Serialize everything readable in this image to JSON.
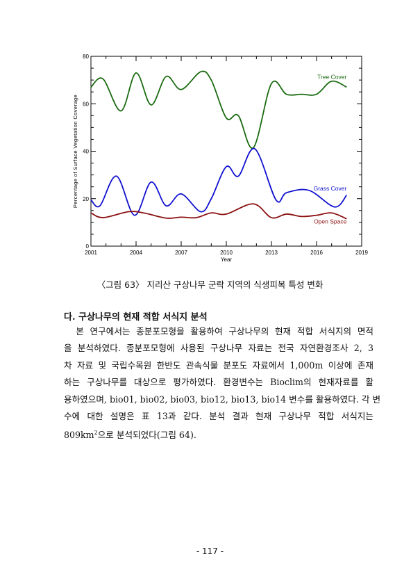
{
  "chart_data": {
    "type": "line",
    "xlabel": "Year",
    "ylabel": "Percentage of Surface Vegetation Coverage",
    "xlim": [
      2001,
      2019
    ],
    "ylim": [
      0,
      80
    ],
    "xticks": [
      "2001",
      "2004",
      "2007",
      "2010",
      "2013",
      "2016",
      "2019"
    ],
    "yticks": [
      "0",
      "20",
      "40",
      "60",
      "80"
    ],
    "grid": false,
    "series": [
      {
        "name": "Tree Cover",
        "color": "#1a6b10",
        "x": [
          2001,
          2001.8,
          2003,
          2004,
          2005,
          2006,
          2007,
          2008.3,
          2009,
          2010,
          2010.8,
          2011.8,
          2013,
          2014,
          2015,
          2016,
          2017,
          2018
        ],
        "y": [
          67,
          70.5,
          57,
          73,
          59.5,
          71.5,
          66,
          73.5,
          70,
          54,
          55,
          41.5,
          68.5,
          64,
          64,
          64,
          69.5,
          67
        ]
      },
      {
        "name": "Grass Cover",
        "color": "#1010d0",
        "x": [
          2001,
          2001.6,
          2002.7,
          2003.9,
          2005,
          2006,
          2007,
          2008.3,
          2009,
          2010,
          2010.8,
          2011.9,
          2013.3,
          2014,
          2015.5,
          2017.2,
          2018
        ],
        "y": [
          19.5,
          17,
          29.5,
          13,
          27,
          17,
          22,
          14.5,
          20,
          33.5,
          29.5,
          41,
          19.5,
          22.5,
          23.5,
          16.5,
          21.5
        ]
      },
      {
        "name": "Open Space",
        "color": "#8b1010",
        "x": [
          2001,
          2001.8,
          2003.5,
          2004.5,
          2006,
          2007,
          2008,
          2009,
          2010,
          2011.8,
          2013,
          2014,
          2015,
          2016,
          2017,
          2018
        ],
        "y": [
          14,
          12,
          14.5,
          14,
          11.8,
          12.2,
          12,
          14,
          13.5,
          17.8,
          12,
          13.5,
          12.5,
          13,
          14,
          11.5
        ]
      }
    ]
  },
  "caption": "〈그림 63〉 지리산 구상나무 군락 지역의 식생피복 특성 변화",
  "heading": "다. 구상나무의 현재 적합 서식지 분석",
  "lines": [
    "　본 연구에서는 종분포모형을 활용하여 구상나무의 현재 적합 서식지의 면적",
    "을 분석하였다. 종분포모형에 사용된 구상나무 자료는 전국 자연환경조사 2, 3",
    "차 자료 및 국립수목원 한반도 관속식물 분포도 자료에서 1,000m 이상에 존재",
    "하는 구상나무를 대상으로 평가하였다. 환경변수는 Bioclim의 현재자료를 활",
    "용하였으며, bio01, bio02, bio03, bio12, bio13, bio14 변수를 활용하였다. 각 변",
    "수에 대한 설명은 표 13과 같다. 분석 결과 현재 구상나무 적합 서식지는"
  ],
  "last_line": {
    "pre": "809km",
    "sup": "2",
    "post": "으로 분석되었다(그림 64)."
  },
  "page_number": "- 117 -"
}
